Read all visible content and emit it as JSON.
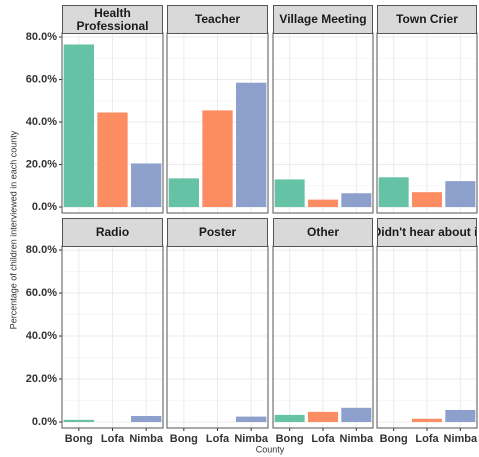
{
  "ylabel": "Percentage of children interviewed in each county",
  "xlabel": "County",
  "chart_data": [
    {
      "type": "bar",
      "title": "Health Professional",
      "categories": [
        "Bong",
        "Lofa",
        "Nimba"
      ],
      "values": [
        76.5,
        44.5,
        20.5
      ],
      "colors": [
        "#66c2a5",
        "#fc8d62",
        "#8da0cb"
      ],
      "ylim": [
        -2.8,
        81.9
      ],
      "yticks": [
        {
          "value": 0,
          "label": "0.0%"
        },
        {
          "value": 20,
          "label": "20.0%"
        },
        {
          "value": 40,
          "label": "40.0%"
        },
        {
          "value": 60,
          "label": "60.0%"
        },
        {
          "value": 80,
          "label": "80.0%"
        }
      ],
      "grid": true
    },
    {
      "type": "bar",
      "title": "Teacher",
      "categories": [
        "Bong",
        "Lofa",
        "Nimba"
      ],
      "values": [
        13.5,
        45.5,
        58.5
      ],
      "colors": [
        "#66c2a5",
        "#fc8d62",
        "#8da0cb"
      ],
      "ylim": [
        -2.8,
        81.9
      ],
      "yticks": [
        {
          "value": 0,
          "label": "0.0%"
        },
        {
          "value": 20,
          "label": "20.0%"
        },
        {
          "value": 40,
          "label": "40.0%"
        },
        {
          "value": 60,
          "label": "60.0%"
        },
        {
          "value": 80,
          "label": "80.0%"
        }
      ],
      "grid": true
    },
    {
      "type": "bar",
      "title": "Village Meeting",
      "categories": [
        "Bong",
        "Lofa",
        "Nimba"
      ],
      "values": [
        13,
        3.5,
        6.5
      ],
      "colors": [
        "#66c2a5",
        "#fc8d62",
        "#8da0cb"
      ],
      "ylim": [
        -2.8,
        81.9
      ],
      "yticks": [
        {
          "value": 0,
          "label": "0.0%"
        },
        {
          "value": 20,
          "label": "20.0%"
        },
        {
          "value": 40,
          "label": "40.0%"
        },
        {
          "value": 60,
          "label": "60.0%"
        },
        {
          "value": 80,
          "label": "80.0%"
        }
      ],
      "grid": true
    },
    {
      "type": "bar",
      "title": "Town Crier",
      "categories": [
        "Bong",
        "Lofa",
        "Nimba"
      ],
      "values": [
        14,
        7,
        12.2
      ],
      "colors": [
        "#66c2a5",
        "#fc8d62",
        "#8da0cb"
      ],
      "ylim": [
        -2.8,
        81.9
      ],
      "yticks": [
        {
          "value": 0,
          "label": "0.0%"
        },
        {
          "value": 20,
          "label": "20.0%"
        },
        {
          "value": 40,
          "label": "40.0%"
        },
        {
          "value": 60,
          "label": "60.0%"
        },
        {
          "value": 80,
          "label": "80.0%"
        }
      ],
      "grid": true
    },
    {
      "type": "bar",
      "title": "Radio",
      "categories": [
        "Bong",
        "Lofa",
        "Nimba"
      ],
      "values": [
        1,
        0,
        2.8
      ],
      "colors": [
        "#66c2a5",
        "#fc8d62",
        "#8da0cb"
      ],
      "ylim": [
        -2.8,
        81.9
      ],
      "yticks": [
        {
          "value": 0,
          "label": "0.0%"
        },
        {
          "value": 20,
          "label": "20.0%"
        },
        {
          "value": 40,
          "label": "40.0%"
        },
        {
          "value": 60,
          "label": "60.0%"
        },
        {
          "value": 80,
          "label": "80.0%"
        }
      ],
      "grid": true
    },
    {
      "type": "bar",
      "title": "Poster",
      "categories": [
        "Bong",
        "Lofa",
        "Nimba"
      ],
      "values": [
        0,
        0,
        2.5
      ],
      "colors": [
        "#66c2a5",
        "#fc8d62",
        "#8da0cb"
      ],
      "ylim": [
        -2.8,
        81.9
      ],
      "yticks": [
        {
          "value": 0,
          "label": "0.0%"
        },
        {
          "value": 20,
          "label": "20.0%"
        },
        {
          "value": 40,
          "label": "40.0%"
        },
        {
          "value": 60,
          "label": "60.0%"
        },
        {
          "value": 80,
          "label": "80.0%"
        }
      ],
      "grid": true
    },
    {
      "type": "bar",
      "title": "Other",
      "categories": [
        "Bong",
        "Lofa",
        "Nimba"
      ],
      "values": [
        3.3,
        4.7,
        6.6
      ],
      "colors": [
        "#66c2a5",
        "#fc8d62",
        "#8da0cb"
      ],
      "ylim": [
        -2.8,
        81.9
      ],
      "yticks": [
        {
          "value": 0,
          "label": "0.0%"
        },
        {
          "value": 20,
          "label": "20.0%"
        },
        {
          "value": 40,
          "label": "40.0%"
        },
        {
          "value": 60,
          "label": "60.0%"
        },
        {
          "value": 80,
          "label": "80.0%"
        }
      ],
      "grid": true
    },
    {
      "type": "bar",
      "title": "Didn't hear about it",
      "categories": [
        "Bong",
        "Lofa",
        "Nimba"
      ],
      "values": [
        0,
        1.5,
        5.6
      ],
      "colors": [
        "#66c2a5",
        "#fc8d62",
        "#8da0cb"
      ],
      "ylim": [
        -2.8,
        81.9
      ],
      "yticks": [
        {
          "value": 0,
          "label": "0.0%"
        },
        {
          "value": 20,
          "label": "20.0%"
        },
        {
          "value": 40,
          "label": "40.0%"
        },
        {
          "value": 60,
          "label": "60.0%"
        },
        {
          "value": 80,
          "label": "80.0%"
        }
      ],
      "grid": true
    }
  ]
}
